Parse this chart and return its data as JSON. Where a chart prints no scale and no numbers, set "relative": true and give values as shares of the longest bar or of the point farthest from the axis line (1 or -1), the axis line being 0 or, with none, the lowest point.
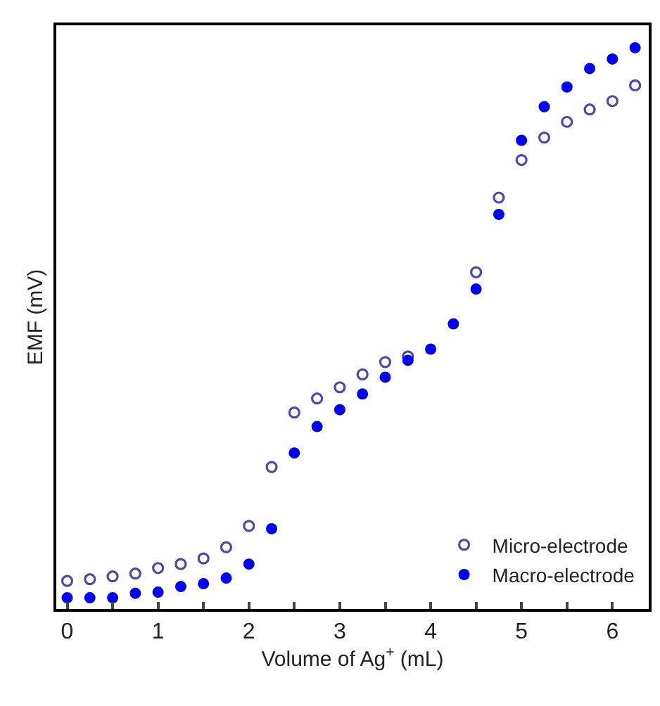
{
  "chart_data": {
    "type": "scatter",
    "relative": true,
    "xlabel": "Volume of Ag$^{+}$ (mL)",
    "ylabel": "EMF (mV)",
    "x": [
      0,
      0.25,
      0.5,
      0.75,
      1,
      1.25,
      1.5,
      1.75,
      2,
      2.25,
      2.5,
      2.75,
      3,
      3.25,
      3.5,
      3.75,
      4,
      4.25,
      4.5,
      4.75,
      5,
      5.25,
      5.5,
      5.75,
      6,
      6.25
    ],
    "xlim": [
      -0.12,
      6.4
    ],
    "xticks": [
      0,
      {
        "value": 0.5,
        "label": null
      },
      1,
      {
        "value": 1.5,
        "label": null
      },
      2,
      {
        "value": 2.5,
        "label": null
      },
      3,
      {
        "value": 3.5,
        "label": null
      },
      4,
      {
        "value": 4.5,
        "label": null
      },
      5,
      {
        "value": 5.5,
        "label": null
      },
      6
    ],
    "legend": "bottom right",
    "series": [
      {
        "name": "Micro-electrode",
        "color": "#4b4ba6",
        "marker": "circle-open",
        "values": [
          0.05,
          0.053,
          0.058,
          0.063,
          0.073,
          0.08,
          0.09,
          0.11,
          0.148,
          0.253,
          0.35,
          0.375,
          0.395,
          0.418,
          0.44,
          0.45,
          null,
          null,
          0.6,
          0.733,
          0.8,
          0.84,
          0.868,
          0.89,
          0.905,
          0.933
        ]
      },
      {
        "name": "Macro-electrode",
        "color": "#0000ee",
        "marker": "circle",
        "values": [
          0.02,
          0.02,
          0.02,
          0.028,
          0.03,
          0.04,
          0.045,
          0.055,
          0.08,
          0.143,
          0.278,
          0.325,
          0.355,
          0.383,
          0.413,
          0.443,
          0.463,
          0.508,
          0.57,
          0.703,
          0.835,
          0.895,
          0.93,
          0.963,
          0.98,
          1
        ]
      }
    ]
  }
}
